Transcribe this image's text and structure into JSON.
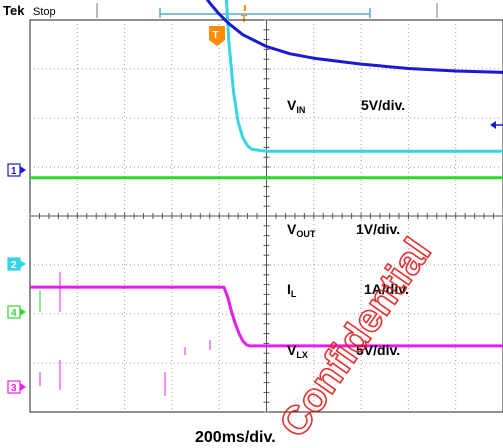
{
  "header": {
    "brand": "Tek",
    "status": "Stop",
    "trigger_marker": "T"
  },
  "channels": [
    {
      "id": "1",
      "color": "#1a1ad2"
    },
    {
      "id": "2",
      "color": "#37d3e6"
    },
    {
      "id": "4",
      "color": "#2fd62f"
    },
    {
      "id": "3",
      "color": "#e81ee8"
    }
  ],
  "chart_data": {
    "type": "line",
    "time_base": "200ms/div.",
    "x_unit_per_div": "200ms",
    "x_divisions": 10,
    "y_divisions": 8,
    "grid": true,
    "series": [
      {
        "label_main": "V",
        "label_sub": "IN",
        "scale": "5V/div.",
        "channel": "1",
        "x_ms": [
          0,
          292,
          300,
          320,
          340,
          360,
          380,
          400,
          420,
          450,
          500,
          550,
          600,
          700,
          800,
          900,
          1000
        ],
        "y_div": [
          5.8,
          5.8,
          5.68,
          5.28,
          4.95,
          4.62,
          4.35,
          4.12,
          3.93,
          3.7,
          3.46,
          3.31,
          3.22,
          3.1,
          3.01,
          2.96,
          2.93
        ]
      },
      {
        "label_main": "V",
        "label_sub": "OUT",
        "scale": "1V/div.",
        "channel": "2",
        "x_ms": [
          0,
          410,
          414,
          420,
          430,
          440,
          450,
          460,
          470,
          500,
          1000
        ],
        "y_div": [
          5.0,
          5.0,
          4.65,
          3.6,
          2.55,
          1.92,
          1.6,
          1.43,
          1.36,
          1.32,
          1.32
        ]
      },
      {
        "label_main": "I",
        "label_sub": "L",
        "scale": "1A/div.",
        "channel": "4",
        "x_ms": [
          0,
          1000
        ],
        "y_div": [
          0.78,
          0.78
        ]
      },
      {
        "label_main": "V",
        "label_sub": "LX",
        "scale": "5V/div.",
        "channel": "3",
        "x_ms": [
          0,
          410,
          418,
          426,
          434,
          442,
          450,
          458,
          466,
          1000
        ],
        "y_div": [
          -1.45,
          -1.45,
          -1.65,
          -1.95,
          -2.2,
          -2.4,
          -2.55,
          -2.63,
          -2.65,
          -2.65
        ]
      }
    ]
  }
}
